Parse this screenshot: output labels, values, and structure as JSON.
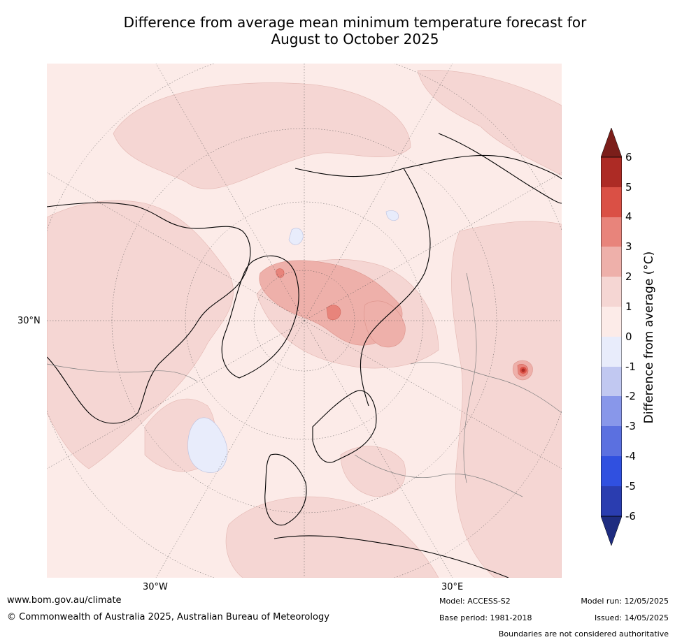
{
  "title_line1": "Difference from average mean minimum temperature forecast for",
  "title_line2": "August to October 2025",
  "axis_labels": {
    "lat_30n": "30°N",
    "lon_30w": "30°W",
    "lon_30e": "30°E"
  },
  "colorbar": {
    "label": "Difference from average (°C)",
    "ticks": [
      "6",
      "5",
      "4",
      "3",
      "2",
      "1",
      "0",
      "-1",
      "-2",
      "-3",
      "-4",
      "-5",
      "-6"
    ],
    "colors": {
      "extend_high": "#7b1e1a",
      "5_to_6": "#ad2b25",
      "4_to_5": "#da5045",
      "3_to_4": "#e8847b",
      "2_to_3": "#eeb0aa",
      "1_to_2": "#f5d6d3",
      "0_to_1": "#fcebe8",
      "m1_to_0": "#e8ecfb",
      "m2_to_m1": "#c1c8f1",
      "m3_to_m2": "#8897ea",
      "m4_to_m3": "#5b70e0",
      "m5_to_m4": "#3050e0",
      "m6_to_m5": "#2a3db0",
      "extend_low": "#1e2c80"
    }
  },
  "footer": {
    "website": "www.bom.gov.au/climate",
    "copyright": "© Commonwealth of Australia 2025, Australian Bureau of Meteorology",
    "model": "Model: ACCESS-S2",
    "base_period": "Base period: 1981-2018",
    "model_run": "Model run: 12/05/2025",
    "issued": "Issued: 14/05/2025",
    "disclaimer": "Boundaries are not considered authoritative"
  }
}
